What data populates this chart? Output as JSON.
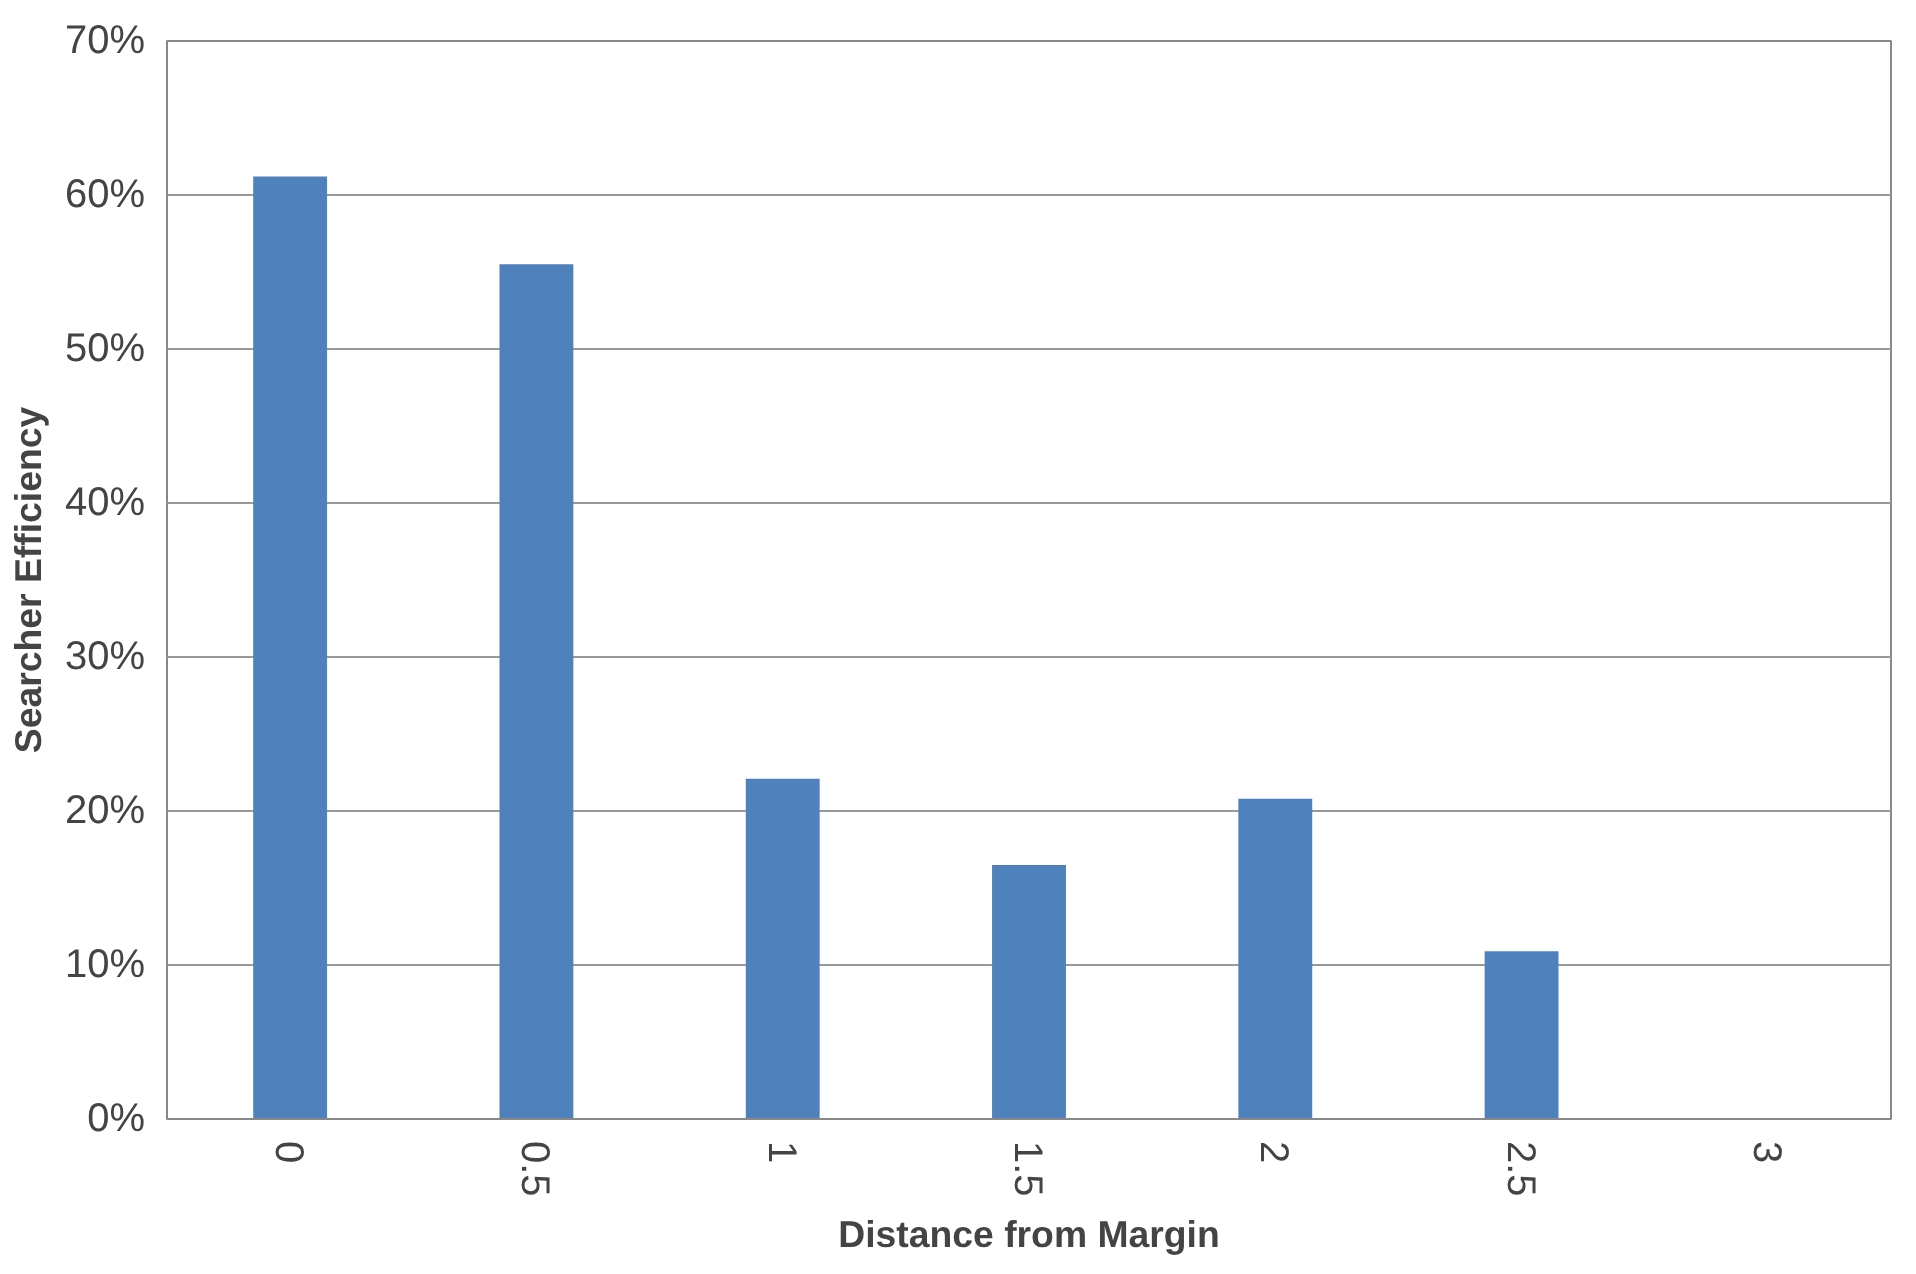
{
  "chart_data": {
    "type": "bar",
    "xlabel": "Distance from Margin",
    "ylabel": "Searcher Efficiency",
    "categories": [
      "0",
      "0.5",
      "1",
      "1.5",
      "2",
      "2.5",
      "3"
    ],
    "values": [
      61.2,
      55.5,
      22.1,
      16.5,
      20.8,
      10.9,
      0
    ],
    "color": "#4f81bd",
    "ylim": [
      0,
      70
    ],
    "yticks": [
      {
        "value": 0,
        "label": "0%"
      },
      {
        "value": 10,
        "label": "10%"
      },
      {
        "value": 20,
        "label": "20%"
      },
      {
        "value": 30,
        "label": "30%"
      },
      {
        "value": 40,
        "label": "40%"
      },
      {
        "value": 50,
        "label": "50%"
      },
      {
        "value": 60,
        "label": "60%"
      },
      {
        "value": 70,
        "label": "70%"
      }
    ],
    "grid": "y"
  }
}
